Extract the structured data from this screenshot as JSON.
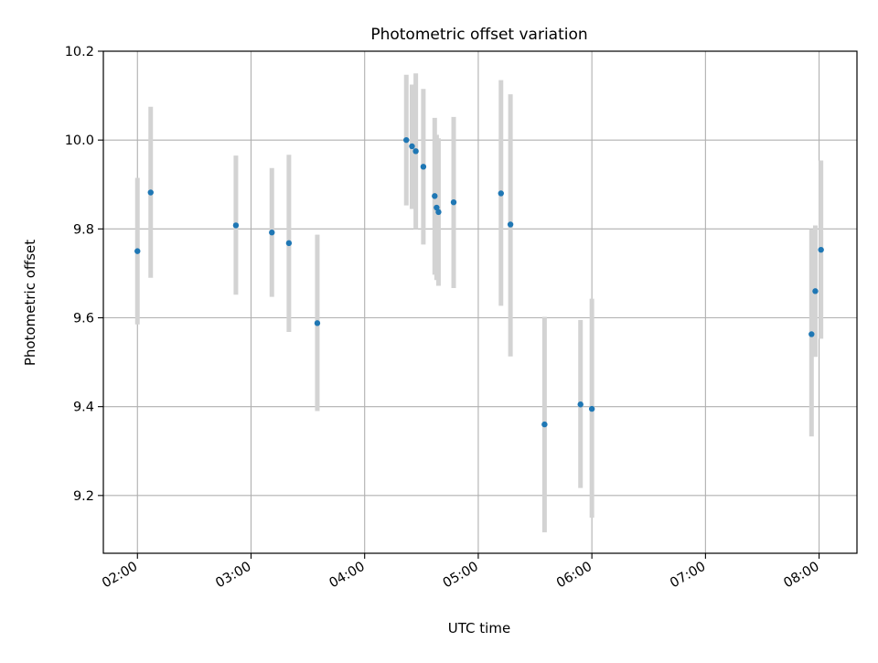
{
  "chart_data": {
    "type": "scatter",
    "title": "Photometric offset variation",
    "xlabel": "UTC time",
    "ylabel": "Photometric offset",
    "xlim": [
      "01:42",
      "08:20"
    ],
    "ylim": [
      9.07,
      10.2
    ],
    "grid": true,
    "xticks": [
      "02:00",
      "03:00",
      "04:00",
      "05:00",
      "06:00",
      "07:00",
      "08:00"
    ],
    "yticks": [
      9.2,
      9.4,
      9.6,
      9.8,
      10.0,
      10.2
    ],
    "ytick_labels": [
      "9.2",
      "9.4",
      "9.6",
      "9.8",
      "10.0",
      "10.2"
    ],
    "colors": {
      "point": "#1f77b4",
      "errorbar": "#d3d3d3",
      "grid": "#b0b0b0"
    },
    "points": [
      {
        "x": "02:00",
        "y": 9.75,
        "lo": 9.585,
        "hi": 9.915
      },
      {
        "x": "02:07",
        "y": 9.882,
        "lo": 9.69,
        "hi": 10.075
      },
      {
        "x": "02:52",
        "y": 9.808,
        "lo": 9.652,
        "hi": 9.965
      },
      {
        "x": "03:11",
        "y": 9.792,
        "lo": 9.647,
        "hi": 9.937
      },
      {
        "x": "03:20",
        "y": 9.768,
        "lo": 9.568,
        "hi": 9.967
      },
      {
        "x": "03:35",
        "y": 9.588,
        "lo": 9.39,
        "hi": 9.787
      },
      {
        "x": "04:22",
        "y": 10.0,
        "lo": 9.853,
        "hi": 10.147
      },
      {
        "x": "04:25",
        "y": 9.986,
        "lo": 9.845,
        "hi": 10.125
      },
      {
        "x": "04:27",
        "y": 9.975,
        "lo": 9.8,
        "hi": 10.15
      },
      {
        "x": "04:31",
        "y": 9.94,
        "lo": 9.765,
        "hi": 10.115
      },
      {
        "x": "04:37",
        "y": 9.874,
        "lo": 9.697,
        "hi": 10.05
      },
      {
        "x": "04:38",
        "y": 9.848,
        "lo": 9.685,
        "hi": 10.012
      },
      {
        "x": "04:39",
        "y": 9.838,
        "lo": 9.672,
        "hi": 10.004
      },
      {
        "x": "04:47",
        "y": 9.86,
        "lo": 9.667,
        "hi": 10.052
      },
      {
        "x": "05:12",
        "y": 9.88,
        "lo": 9.627,
        "hi": 10.135
      },
      {
        "x": "05:17",
        "y": 9.81,
        "lo": 9.513,
        "hi": 10.103
      },
      {
        "x": "05:35",
        "y": 9.36,
        "lo": 9.117,
        "hi": 9.602
      },
      {
        "x": "05:54",
        "y": 9.405,
        "lo": 9.217,
        "hi": 9.595
      },
      {
        "x": "06:00",
        "y": 9.395,
        "lo": 9.15,
        "hi": 9.643
      },
      {
        "x": "07:56",
        "y": 9.563,
        "lo": 9.333,
        "hi": 9.8
      },
      {
        "x": "07:58",
        "y": 9.66,
        "lo": 9.512,
        "hi": 9.808
      },
      {
        "x": "08:01",
        "y": 9.753,
        "lo": 9.553,
        "hi": 9.954
      }
    ]
  }
}
